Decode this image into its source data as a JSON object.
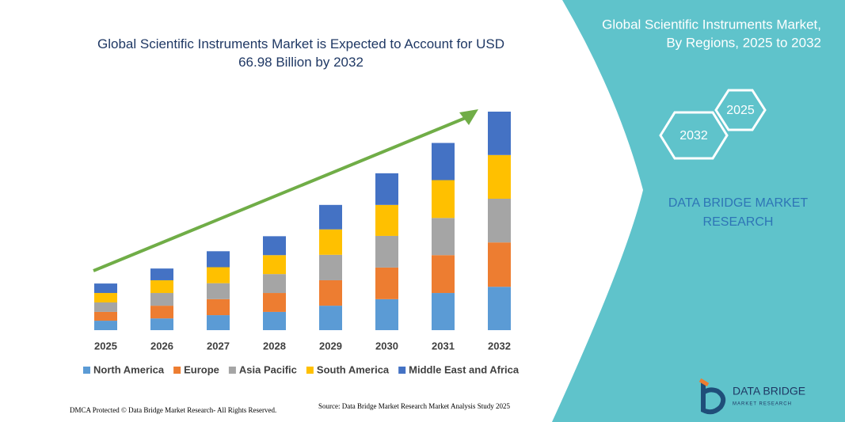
{
  "chart_data": {
    "type": "stacked_bar",
    "title": "Global Scientific Instruments Market is Expected to Account for USD 66.98 Billion by 2032",
    "categories": [
      "2025",
      "2026",
      "2027",
      "2028",
      "2029",
      "2030",
      "2031",
      "2032"
    ],
    "series": [
      {
        "name": "North America",
        "color": "#5b9bd5",
        "values": [
          2.9,
          3.6,
          4.6,
          5.6,
          7.5,
          9.5,
          11.4,
          13.3
        ]
      },
      {
        "name": "Europe",
        "color": "#ed7d31",
        "values": [
          2.7,
          3.9,
          4.9,
          5.8,
          7.8,
          9.7,
          11.6,
          13.6
        ]
      },
      {
        "name": "Asia Pacific",
        "color": "#a5a5a5",
        "values": [
          2.9,
          3.9,
          4.9,
          5.8,
          7.8,
          9.7,
          11.4,
          13.4
        ]
      },
      {
        "name": "South America",
        "color": "#ffc000",
        "values": [
          2.9,
          3.9,
          4.9,
          5.8,
          7.8,
          9.5,
          11.6,
          13.4
        ]
      },
      {
        "name": "Middle East and Africa",
        "color": "#4472c4",
        "values": [
          2.9,
          3.6,
          4.9,
          5.8,
          7.5,
          9.7,
          11.4,
          13.3
        ]
      }
    ]
  },
  "panel": {
    "title_lines": [
      "Global Scientific Instruments Market,",
      "By Regions, 2025 to 2032"
    ],
    "hexagons": [
      "2025",
      "2032"
    ],
    "brand_lines": [
      "DATA BRIDGE MARKET",
      "RESEARCH"
    ]
  },
  "footer": {
    "dmca": "DMCA Protected © Data Bridge Market Research- All Rights Reserved.",
    "source": "Source: Data Bridge Market Research  Market Analysis Study 2025"
  },
  "logo": {
    "name": "DATA BRIDGE",
    "tagline": "MARKET RESEARCH"
  }
}
